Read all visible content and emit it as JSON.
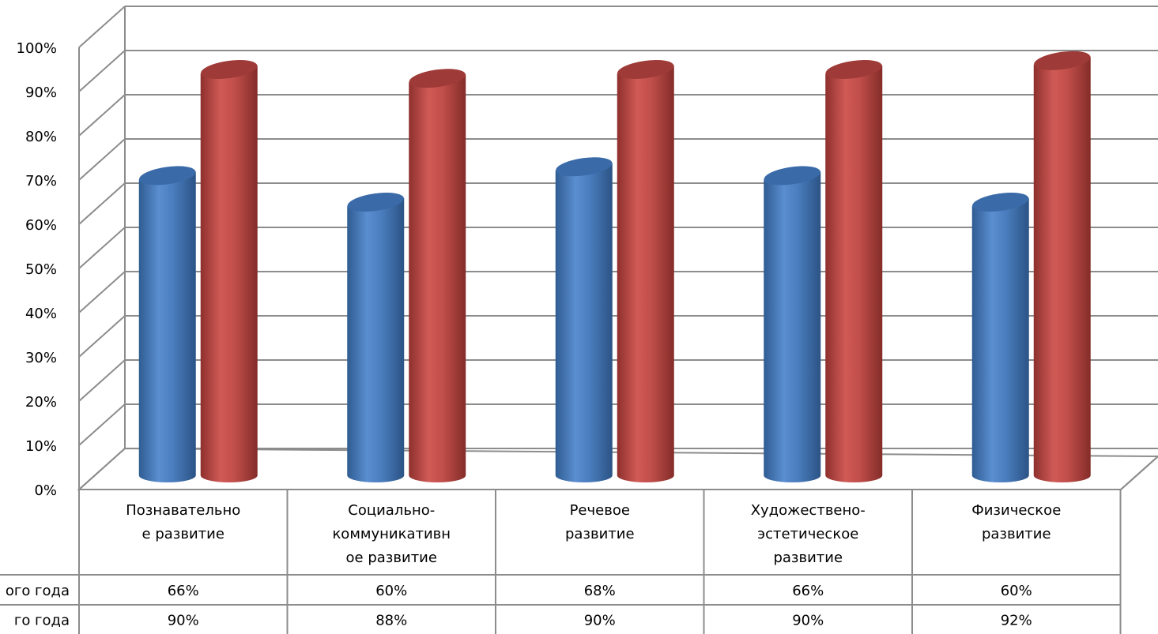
{
  "chart_data": {
    "type": "bar",
    "categories": [
      [
        "Познавательно",
        "е развитие"
      ],
      [
        "Социально-",
        "коммуникативн",
        "ое развитие"
      ],
      [
        "Речевое",
        "развитие"
      ],
      [
        "Художествено-",
        "эстетическое",
        "развитие"
      ],
      [
        "Физическое",
        "развитие"
      ]
    ],
    "series": [
      {
        "name": "ого года",
        "values": [
          66,
          60,
          68,
          66,
          60
        ],
        "labels": [
          "66%",
          "60%",
          "68%",
          "66%",
          "60%"
        ],
        "color": "#4F81BD"
      },
      {
        "name": "го года",
        "values": [
          90,
          88,
          90,
          90,
          92
        ],
        "labels": [
          "90%",
          "88%",
          "90%",
          "90%",
          "92%"
        ],
        "color": "#C0504D"
      }
    ],
    "y_ticks": [
      "0%",
      "10%",
      "20%",
      "30%",
      "40%",
      "50%",
      "60%",
      "70%",
      "80%",
      "90%",
      "100%"
    ],
    "ylim": [
      0,
      100
    ],
    "grid": true,
    "legend": "data-table",
    "style": "3d-cylinder"
  }
}
